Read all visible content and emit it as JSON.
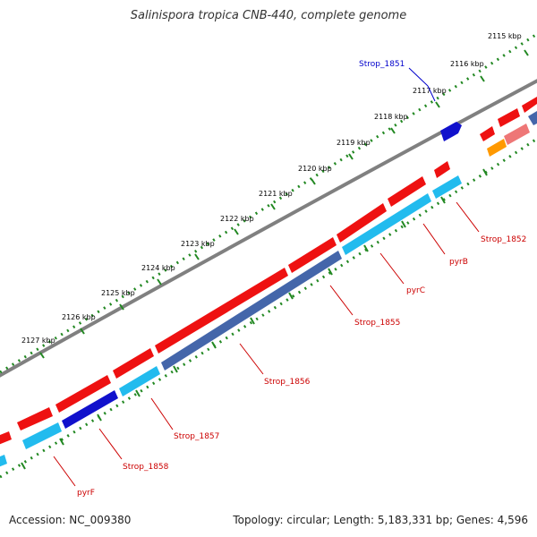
{
  "header": {
    "title": "Salinispora tropica CNB-440, complete genome"
  },
  "footer": {
    "accession": "Accession: NC_009380",
    "summary": "Topology: circular; Length: 5,183,331 bp; Genes: 4,596"
  },
  "scale": {
    "tick_labels": [
      "2115 kbp",
      "2116 kbp",
      "2117 kbp",
      "2118 kbp",
      "2119 kbp",
      "2120 kbp",
      "2121 kbp",
      "2122 kbp",
      "2123 kbp",
      "2124 kbp",
      "2125 kbp",
      "2126 kbp",
      "2127 kbp"
    ]
  },
  "genes": [
    {
      "name": "Strop_1851",
      "color": "#0000cc"
    },
    {
      "name": "Strop_1852",
      "color": "#cc0000"
    },
    {
      "name": "pyrB",
      "color": "#cc0000"
    },
    {
      "name": "pyrC",
      "color": "#cc0000"
    },
    {
      "name": "Strop_1855",
      "color": "#cc0000"
    },
    {
      "name": "Strop_1856",
      "color": "#cc0000"
    },
    {
      "name": "Strop_1857",
      "color": "#cc0000"
    },
    {
      "name": "Strop_1858",
      "color": "#cc0000"
    },
    {
      "name": "pyrF",
      "color": "#cc0000"
    }
  ],
  "colors": {
    "backbone": "#808080",
    "forward_strand": "#ee1111",
    "reverse_strand": "#22bbee",
    "reverse_strand_dark": "#4466aa",
    "other_gene": "#1111cc",
    "pink_gene": "#ee7777",
    "orange_gene": "#ff9900",
    "tick": "#228822"
  }
}
